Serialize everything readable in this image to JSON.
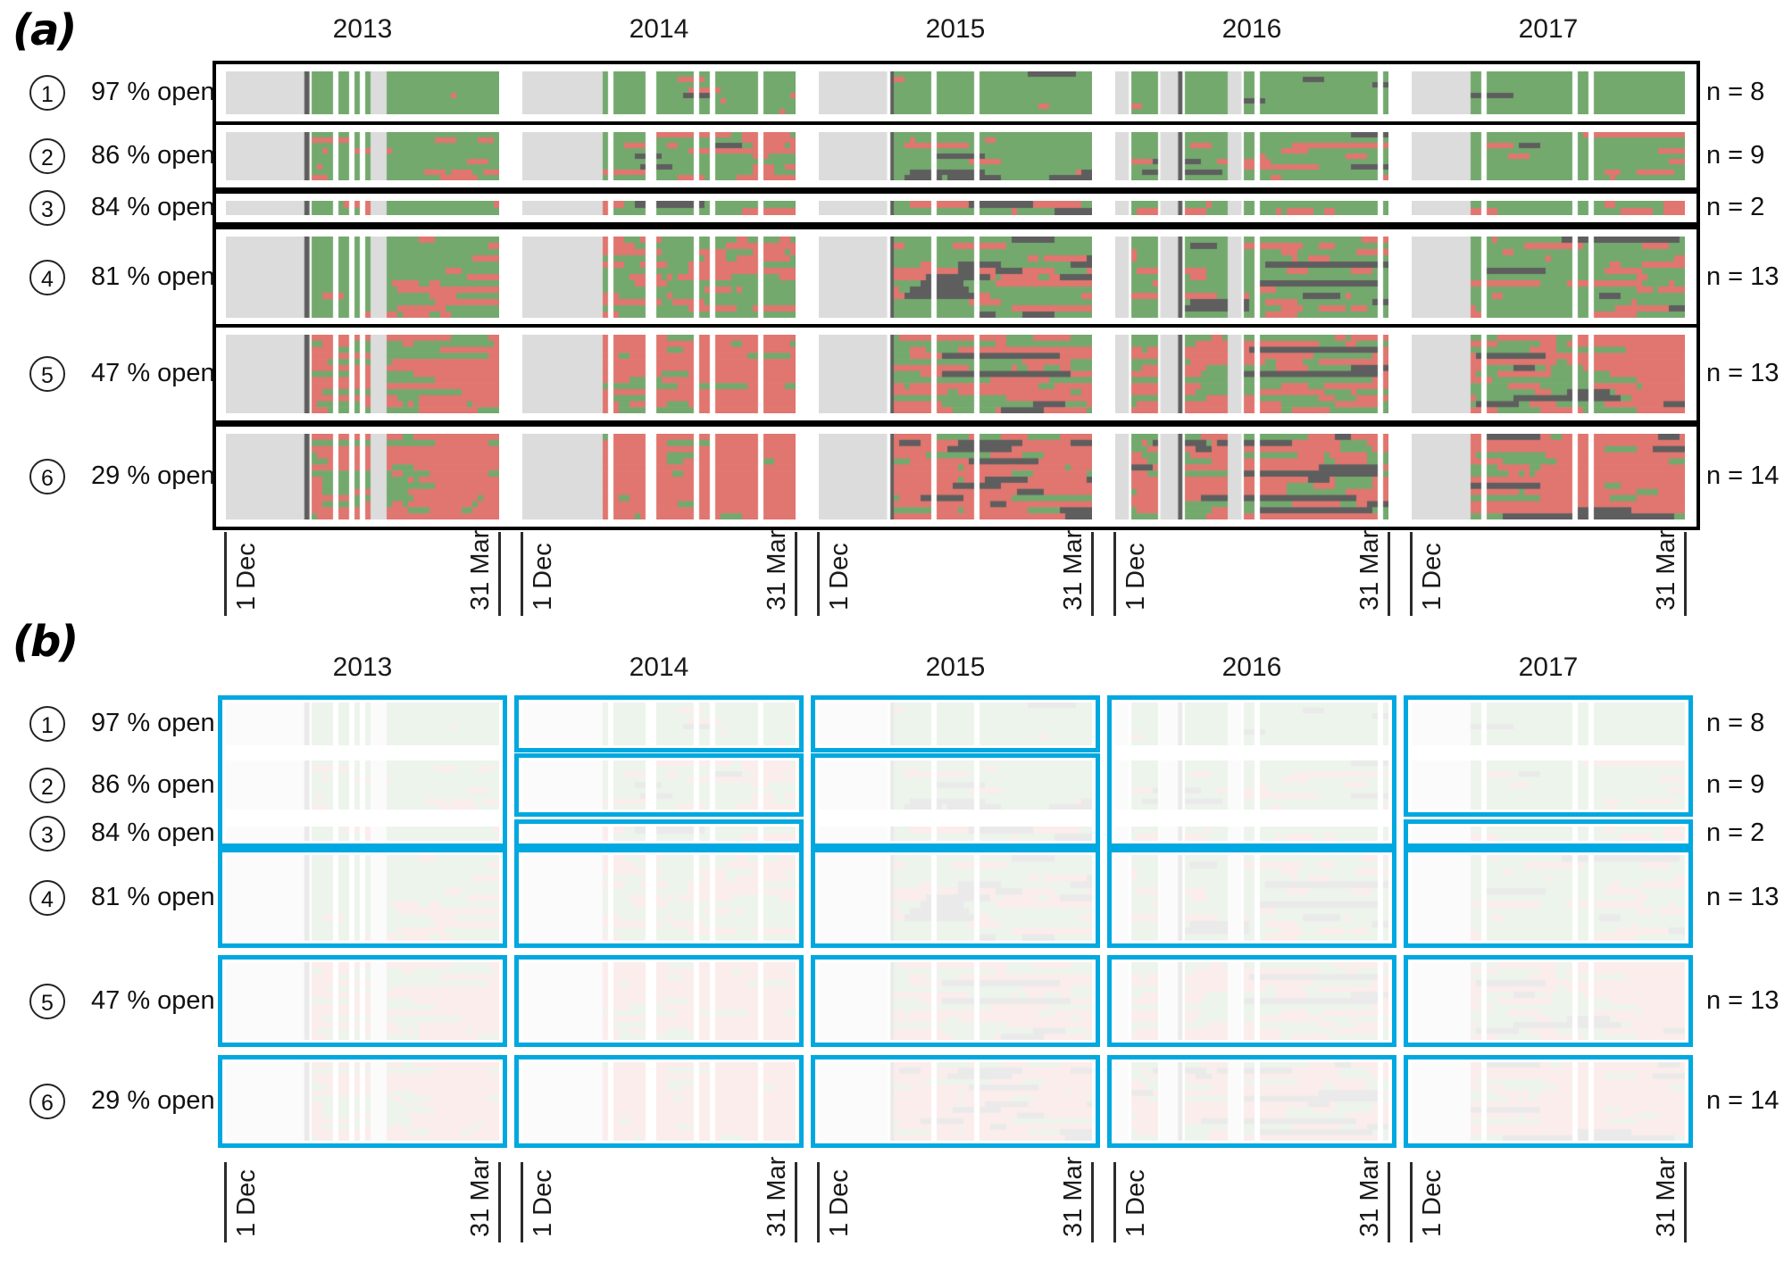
{
  "figure": {
    "panel_a_label": "(a)",
    "panel_b_label": "(b)"
  },
  "chart_data": {
    "type": "heatmap",
    "description": "Daily open/closed status heatmaps for six groups of sites across five winter seasons; panel (a) full colour, panel (b) faded with blue highlight boxes.",
    "years": [
      "2013",
      "2014",
      "2015",
      "2016",
      "2017"
    ],
    "x_ticks": [
      "1 Dec",
      "31 Mar"
    ],
    "groups": [
      {
        "id": "1",
        "open_label": "97 % open",
        "open_fraction": 0.97,
        "n": 8,
        "n_label": "n = 8"
      },
      {
        "id": "2",
        "open_label": "86 % open",
        "open_fraction": 0.86,
        "n": 9,
        "n_label": "n = 9"
      },
      {
        "id": "3",
        "open_label": "84 % open",
        "open_fraction": 0.84,
        "n": 2,
        "n_label": "n = 2"
      },
      {
        "id": "4",
        "open_label": "81 % open",
        "open_fraction": 0.81,
        "n": 13,
        "n_label": "n = 13"
      },
      {
        "id": "5",
        "open_label": "47 % open",
        "open_fraction": 0.47,
        "n": 13,
        "n_label": "n = 13"
      },
      {
        "id": "6",
        "open_label": "29 % open",
        "open_fraction": 0.29,
        "n": 14,
        "n_label": "n = 14"
      }
    ],
    "colors": {
      "open": "#74a96e",
      "closed": "#e0766f",
      "no_data": "#dcdcdc",
      "dark": "#5e5e5e",
      "highlight": "#00a8e0",
      "frame": "#000000"
    },
    "year_coverage_segments": {
      "2013": [
        [
          "nodata",
          0,
          0.287
        ],
        [
          "dark",
          0.287,
          0.306
        ],
        [
          "mosaic",
          0.306,
          0.395
        ],
        [
          "gap",
          0.395,
          0.414
        ],
        [
          "mosaic",
          0.414,
          0.451
        ],
        [
          "gap",
          0.451,
          0.47
        ],
        [
          "mosaic",
          0.47,
          0.49
        ],
        [
          "gap",
          0.49,
          0.506
        ],
        [
          "mosaic",
          0.506,
          0.523
        ],
        [
          "nodata",
          0.523,
          0.588
        ],
        [
          "mosaic",
          0.588,
          1
        ]
      ],
      "2014": [
        [
          "nodata",
          0,
          0.295
        ],
        [
          "mosaic",
          0.295,
          0.315
        ],
        [
          "gap",
          0.315,
          0.327
        ],
        [
          "mosaic",
          0.327,
          0.45
        ],
        [
          "gap",
          0.45,
          0.462
        ],
        [
          "mosaic",
          0.462,
          0.475
        ],
        [
          "gap",
          0.475,
          0.487
        ],
        [
          "mosaic",
          0.487,
          0.63
        ],
        [
          "gap",
          0.63,
          0.645
        ],
        [
          "mosaic",
          0.645,
          0.69
        ],
        [
          "gap",
          0.69,
          0.705
        ],
        [
          "mosaic",
          0.705,
          0.775
        ],
        [
          "gap",
          0.775,
          0.79
        ],
        [
          "mosaic",
          0.79,
          0.87
        ],
        [
          "gap",
          0.87,
          0.885
        ],
        [
          "mosaic",
          0.885,
          1
        ]
      ],
      "2015": [
        [
          "nodata",
          0,
          0.25
        ],
        [
          "mosaic",
          0.25,
          0.262
        ],
        [
          "dark",
          0.262,
          0.28
        ],
        [
          "mosaic",
          0.28,
          0.42
        ],
        [
          "gap",
          0.42,
          0.435
        ],
        [
          "mosaic",
          0.435,
          0.52
        ],
        [
          "gap",
          0.52,
          0.535
        ],
        [
          "mosaic",
          0.535,
          0.57
        ],
        [
          "gap",
          0.57,
          0.585
        ],
        [
          "mosaic",
          0.585,
          1
        ]
      ],
      "2016": [
        [
          "nodata",
          0,
          0.05
        ],
        [
          "mosaic",
          0.05,
          0.165
        ],
        [
          "nodata",
          0.165,
          0.23
        ],
        [
          "dark",
          0.23,
          0.246
        ],
        [
          "mosaic",
          0.246,
          0.41
        ],
        [
          "nodata",
          0.41,
          0.462
        ],
        [
          "mosaic",
          0.462,
          0.49
        ],
        [
          "gap",
          0.49,
          0.5
        ],
        [
          "mosaic",
          0.5,
          0.515
        ],
        [
          "gap",
          0.515,
          0.526
        ],
        [
          "mosaic",
          0.526,
          0.56
        ],
        [
          "gap",
          0.56,
          0.571
        ],
        [
          "mosaic",
          0.571,
          0.962
        ],
        [
          "gap",
          0.962,
          0.973
        ],
        [
          "mosaic",
          0.973,
          1
        ]
      ],
      "2017": [
        [
          "nodata",
          0,
          0.22
        ],
        [
          "mosaic",
          0.22,
          0.248
        ],
        [
          "gap",
          0.248,
          0.268
        ],
        [
          "mosaic",
          0.268,
          0.59
        ],
        [
          "gap",
          0.59,
          0.605
        ],
        [
          "mosaic",
          0.605,
          0.65
        ],
        [
          "gap",
          0.65,
          0.665
        ],
        [
          "mosaic",
          0.665,
          1
        ]
      ]
    },
    "panel_b_highlight_boxes": [
      {
        "year_index": 0,
        "group_start": 0,
        "group_end": 2
      },
      {
        "year_index": 1,
        "group_start": 0,
        "group_end": 0
      },
      {
        "year_index": 1,
        "group_start": 1,
        "group_end": 1
      },
      {
        "year_index": 1,
        "group_start": 2,
        "group_end": 2
      },
      {
        "year_index": 2,
        "group_start": 0,
        "group_end": 0
      },
      {
        "year_index": 2,
        "group_start": 1,
        "group_end": 2
      },
      {
        "year_index": 3,
        "group_start": 0,
        "group_end": 2
      },
      {
        "year_index": 4,
        "group_start": 0,
        "group_end": 1
      },
      {
        "year_index": 4,
        "group_start": 2,
        "group_end": 2
      },
      {
        "year_index": 0,
        "group_start": 3,
        "group_end": 3
      },
      {
        "year_index": 1,
        "group_start": 3,
        "group_end": 3
      },
      {
        "year_index": 2,
        "group_start": 3,
        "group_end": 3
      },
      {
        "year_index": 3,
        "group_start": 3,
        "group_end": 3
      },
      {
        "year_index": 4,
        "group_start": 3,
        "group_end": 3
      },
      {
        "year_index": 0,
        "group_start": 4,
        "group_end": 4
      },
      {
        "year_index": 1,
        "group_start": 4,
        "group_end": 4
      },
      {
        "year_index": 2,
        "group_start": 4,
        "group_end": 4
      },
      {
        "year_index": 3,
        "group_start": 4,
        "group_end": 4
      },
      {
        "year_index": 4,
        "group_start": 4,
        "group_end": 4
      },
      {
        "year_index": 0,
        "group_start": 5,
        "group_end": 5
      },
      {
        "year_index": 1,
        "group_start": 5,
        "group_end": 5
      },
      {
        "year_index": 2,
        "group_start": 5,
        "group_end": 5
      },
      {
        "year_index": 3,
        "group_start": 5,
        "group_end": 5
      },
      {
        "year_index": 4,
        "group_start": 5,
        "group_end": 5
      }
    ],
    "texture": {
      "persistence": 0.78,
      "year_red_mult": [
        0.9,
        1.25,
        1.0,
        0.95,
        1.1
      ],
      "late_red_boost": [
        0.35,
        0.85,
        0.05,
        0.1,
        0.7
      ],
      "year_dark_p": [
        0.004,
        0.008,
        0.1,
        0.04,
        0.03
      ],
      "row_dark_mult": [
        0.3,
        1.3,
        0.8,
        1.0,
        0.7,
        1.5
      ],
      "dark_individual_p": [
        0,
        0,
        0.07,
        0.05,
        0.07
      ],
      "faded_overlay_alpha": 0.87
    }
  }
}
